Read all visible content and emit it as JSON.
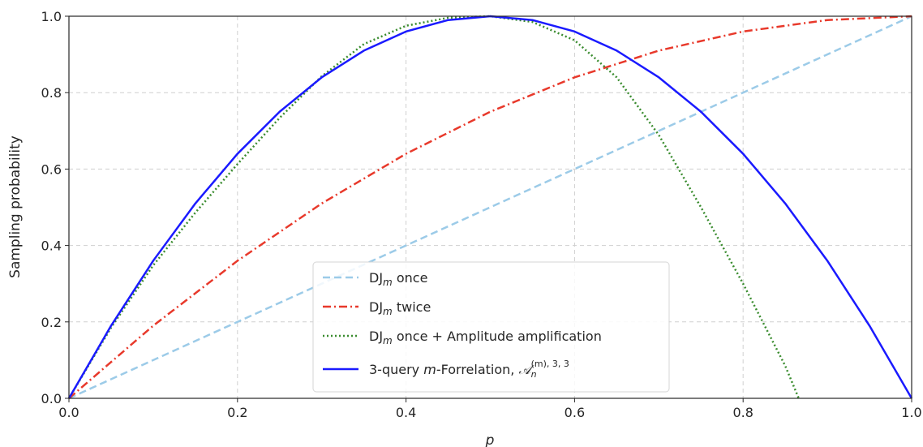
{
  "chart_data": {
    "type": "line",
    "xlabel": "p",
    "ylabel": "Sampling probability",
    "xlim": [
      0.0,
      1.0
    ],
    "ylim": [
      0.0,
      1.0
    ],
    "x_ticks": [
      "0.0",
      "0.2",
      "0.4",
      "0.6",
      "0.8",
      "1.0"
    ],
    "y_ticks": [
      "0.0",
      "0.2",
      "0.4",
      "0.6",
      "0.8",
      "1.0"
    ],
    "grid": true,
    "legend_position": "lower-center",
    "x": [
      0.0,
      0.05,
      0.1,
      0.15,
      0.2,
      0.25,
      0.3,
      0.35,
      0.4,
      0.45,
      0.5,
      0.55,
      0.6,
      0.65,
      0.7,
      0.75,
      0.8,
      0.85,
      0.866
    ],
    "series": [
      {
        "name_main": "DJ",
        "name_sub": "m",
        "name_rest": " once",
        "color": "#9ccbe8",
        "style": "dashed",
        "x": [
          0.0,
          1.0
        ],
        "values": [
          0.0,
          1.0
        ]
      },
      {
        "name_main": "DJ",
        "name_sub": "m",
        "name_rest": " twice",
        "color": "#e8392b",
        "style": "dashdot",
        "x": [
          0.0,
          0.1,
          0.2,
          0.3,
          0.4,
          0.5,
          0.6,
          0.7,
          0.8,
          0.9,
          1.0
        ],
        "values": [
          0.0,
          0.19,
          0.36,
          0.51,
          0.64,
          0.75,
          0.84,
          0.91,
          0.96,
          0.99,
          1.0
        ]
      },
      {
        "name_main": "DJ",
        "name_sub": "m",
        "name_rest": " once + Amplitude amplification",
        "color": "#3a8c2f",
        "style": "dotted",
        "x": [
          0.0,
          0.05,
          0.1,
          0.15,
          0.2,
          0.25,
          0.3,
          0.35,
          0.4,
          0.45,
          0.5,
          0.55,
          0.6,
          0.65,
          0.7,
          0.75,
          0.8,
          0.85,
          0.866
        ],
        "values": [
          0.0,
          0.185,
          0.348,
          0.486,
          0.613,
          0.734,
          0.843,
          0.927,
          0.975,
          0.996,
          1.0,
          0.985,
          0.937,
          0.84,
          0.689,
          0.5,
          0.3,
          0.085,
          0.0
        ]
      },
      {
        "name_prefix": "3-query ",
        "name_italic": "m",
        "name_mid": "-Forrelation, ",
        "name_math": "𝒜",
        "name_math_sub": "n",
        "name_math_sup": "(m), 3, 3",
        "color": "#1a1aff",
        "style": "solid",
        "x": [
          0.0,
          0.05,
          0.1,
          0.15,
          0.2,
          0.25,
          0.3,
          0.35,
          0.4,
          0.45,
          0.5,
          0.55,
          0.6,
          0.65,
          0.7,
          0.75,
          0.8,
          0.85,
          0.9,
          0.95,
          1.0
        ],
        "values": [
          0.0,
          0.19,
          0.36,
          0.51,
          0.64,
          0.75,
          0.84,
          0.91,
          0.96,
          0.99,
          1.0,
          0.99,
          0.96,
          0.91,
          0.84,
          0.75,
          0.64,
          0.51,
          0.36,
          0.19,
          0.0
        ]
      }
    ]
  }
}
